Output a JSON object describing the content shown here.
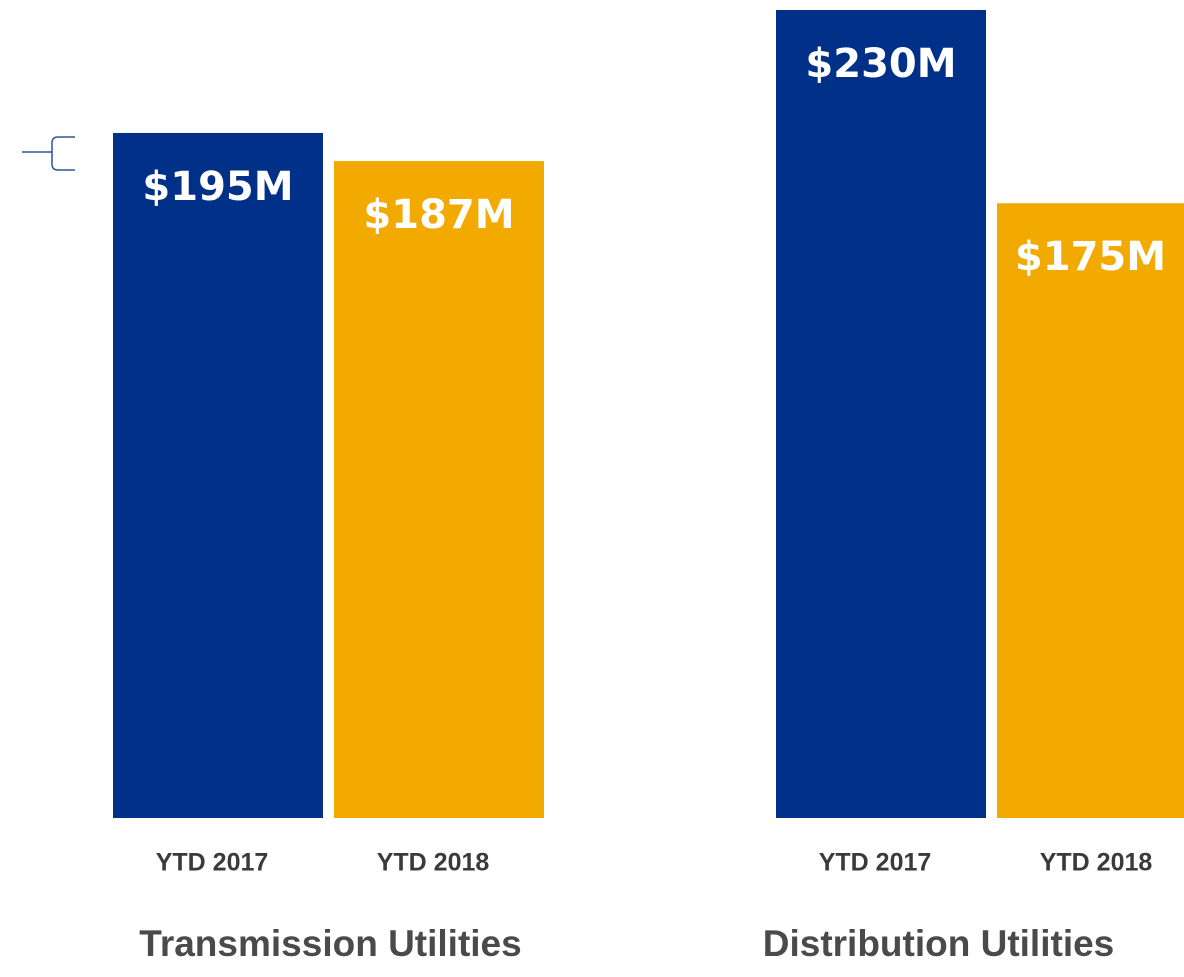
{
  "chart_data": [
    {
      "type": "bar",
      "title": "Transmission Utilities",
      "categories": [
        "YTD 2017",
        "YTD 2018"
      ],
      "values": [
        195,
        187
      ],
      "value_labels": [
        "$195M",
        "$187M"
      ],
      "colors": [
        "#003087",
        "#f2a900"
      ],
      "ylim": [
        0,
        230
      ]
    },
    {
      "type": "bar",
      "title": "Distribution Utilities",
      "categories": [
        "YTD 2017",
        "YTD 2018"
      ],
      "values": [
        230,
        175
      ],
      "value_labels": [
        "$230M",
        "$175M"
      ],
      "colors": [
        "#003087",
        "#f2a900"
      ],
      "ylim": [
        0,
        230
      ]
    }
  ]
}
